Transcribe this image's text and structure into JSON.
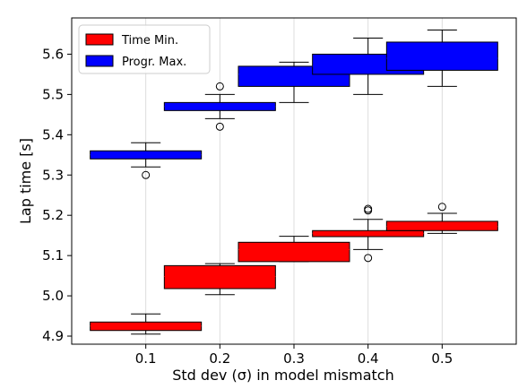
{
  "chart_data": {
    "type": "box",
    "xlabel": "Std dev (σ) in model mismatch",
    "ylabel": "Lap time [s]",
    "xlim": [
      0.0,
      0.6
    ],
    "ylim": [
      4.88,
      5.69
    ],
    "x_ticks": [
      0.1,
      0.2,
      0.3,
      0.4,
      0.5
    ],
    "x_tick_labels": [
      "0.1",
      "0.2",
      "0.3",
      "0.4",
      "0.5"
    ],
    "y_ticks": [
      4.9,
      5.0,
      5.1,
      5.2,
      5.3,
      5.4,
      5.5,
      5.6
    ],
    "y_tick_labels": [
      "4.9",
      "5.0",
      "5.1",
      "5.2",
      "5.3",
      "5.4",
      "5.5",
      "5.6"
    ],
    "grid": "vertical",
    "legend_position": "top-left",
    "series": [
      {
        "name": "Time Min.",
        "color": "#ff0000",
        "boxes": [
          {
            "x": 0.1,
            "whislo": 4.905,
            "q1": 4.914,
            "med": 4.925,
            "q3": 4.935,
            "whishi": 4.955,
            "fliers": []
          },
          {
            "x": 0.2,
            "whislo": 5.003,
            "q1": 5.018,
            "med": 5.048,
            "q3": 5.075,
            "whishi": 5.08,
            "fliers": []
          },
          {
            "x": 0.3,
            "whislo": 5.085,
            "q1": 5.085,
            "med": 5.115,
            "q3": 5.133,
            "whishi": 5.148,
            "fliers": []
          },
          {
            "x": 0.4,
            "whislo": 5.115,
            "q1": 5.147,
            "med": 5.155,
            "q3": 5.162,
            "whishi": 5.19,
            "fliers": [
              5.094,
              5.212,
              5.216
            ]
          },
          {
            "x": 0.5,
            "whislo": 5.155,
            "q1": 5.162,
            "med": 5.172,
            "q3": 5.185,
            "whishi": 5.205,
            "fliers": [
              5.221
            ]
          }
        ]
      },
      {
        "name": "Progr. Max.",
        "color": "#0000ff",
        "boxes": [
          {
            "x": 0.1,
            "whislo": 5.32,
            "q1": 5.34,
            "med": 5.35,
            "q3": 5.36,
            "whishi": 5.38,
            "fliers": [
              5.3
            ]
          },
          {
            "x": 0.2,
            "whislo": 5.44,
            "q1": 5.46,
            "med": 5.47,
            "q3": 5.48,
            "whishi": 5.5,
            "fliers": [
              5.42,
              5.52
            ]
          },
          {
            "x": 0.3,
            "whislo": 5.48,
            "q1": 5.52,
            "med": 5.55,
            "q3": 5.57,
            "whishi": 5.58,
            "fliers": []
          },
          {
            "x": 0.4,
            "whislo": 5.5,
            "q1": 5.55,
            "med": 5.57,
            "q3": 5.6,
            "whishi": 5.64,
            "fliers": []
          },
          {
            "x": 0.5,
            "whislo": 5.52,
            "q1": 5.56,
            "med": 5.59,
            "q3": 5.63,
            "whishi": 5.66,
            "fliers": []
          }
        ]
      }
    ]
  }
}
